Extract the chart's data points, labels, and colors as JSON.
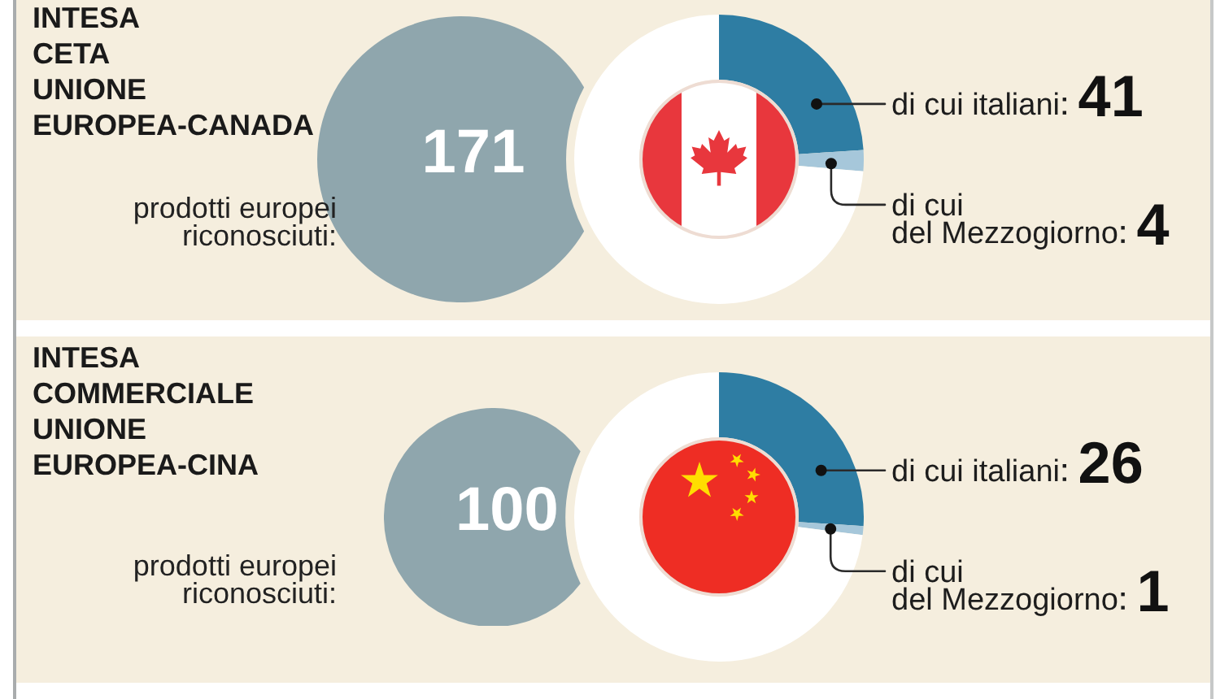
{
  "chart_data": [
    {
      "type": "donut",
      "title": "INTESA\nCETA\nUNIONE\nEUROPEA-CANADA",
      "categories": [
        "di cui italiani",
        "di cui\ndel Mezzogiorno",
        null
      ],
      "values": [
        41,
        4,
        126
      ],
      "colors": [
        "#2e7da3",
        "#a6c7da",
        "#ffffff"
      ],
      "value_labels": [
        "41",
        "4",
        null
      ],
      "annotations": [
        "prodotti europei\nriconosciuti:",
        "171"
      ]
    },
    {
      "type": "donut",
      "title": "INTESA\nCOMMERCIALE\nUNIONE\nEUROPEA-CINA",
      "categories": [
        "di cui italiani",
        "di cui\ndel Mezzogiorno",
        null
      ],
      "values": [
        26,
        1,
        73
      ],
      "colors": [
        "#2e7da3",
        "#a6c7da",
        "#ffffff"
      ],
      "value_labels": [
        "26",
        "1",
        null
      ],
      "annotations": [
        "prodotti europei\nriconosciuti:",
        "100"
      ]
    }
  ]
}
